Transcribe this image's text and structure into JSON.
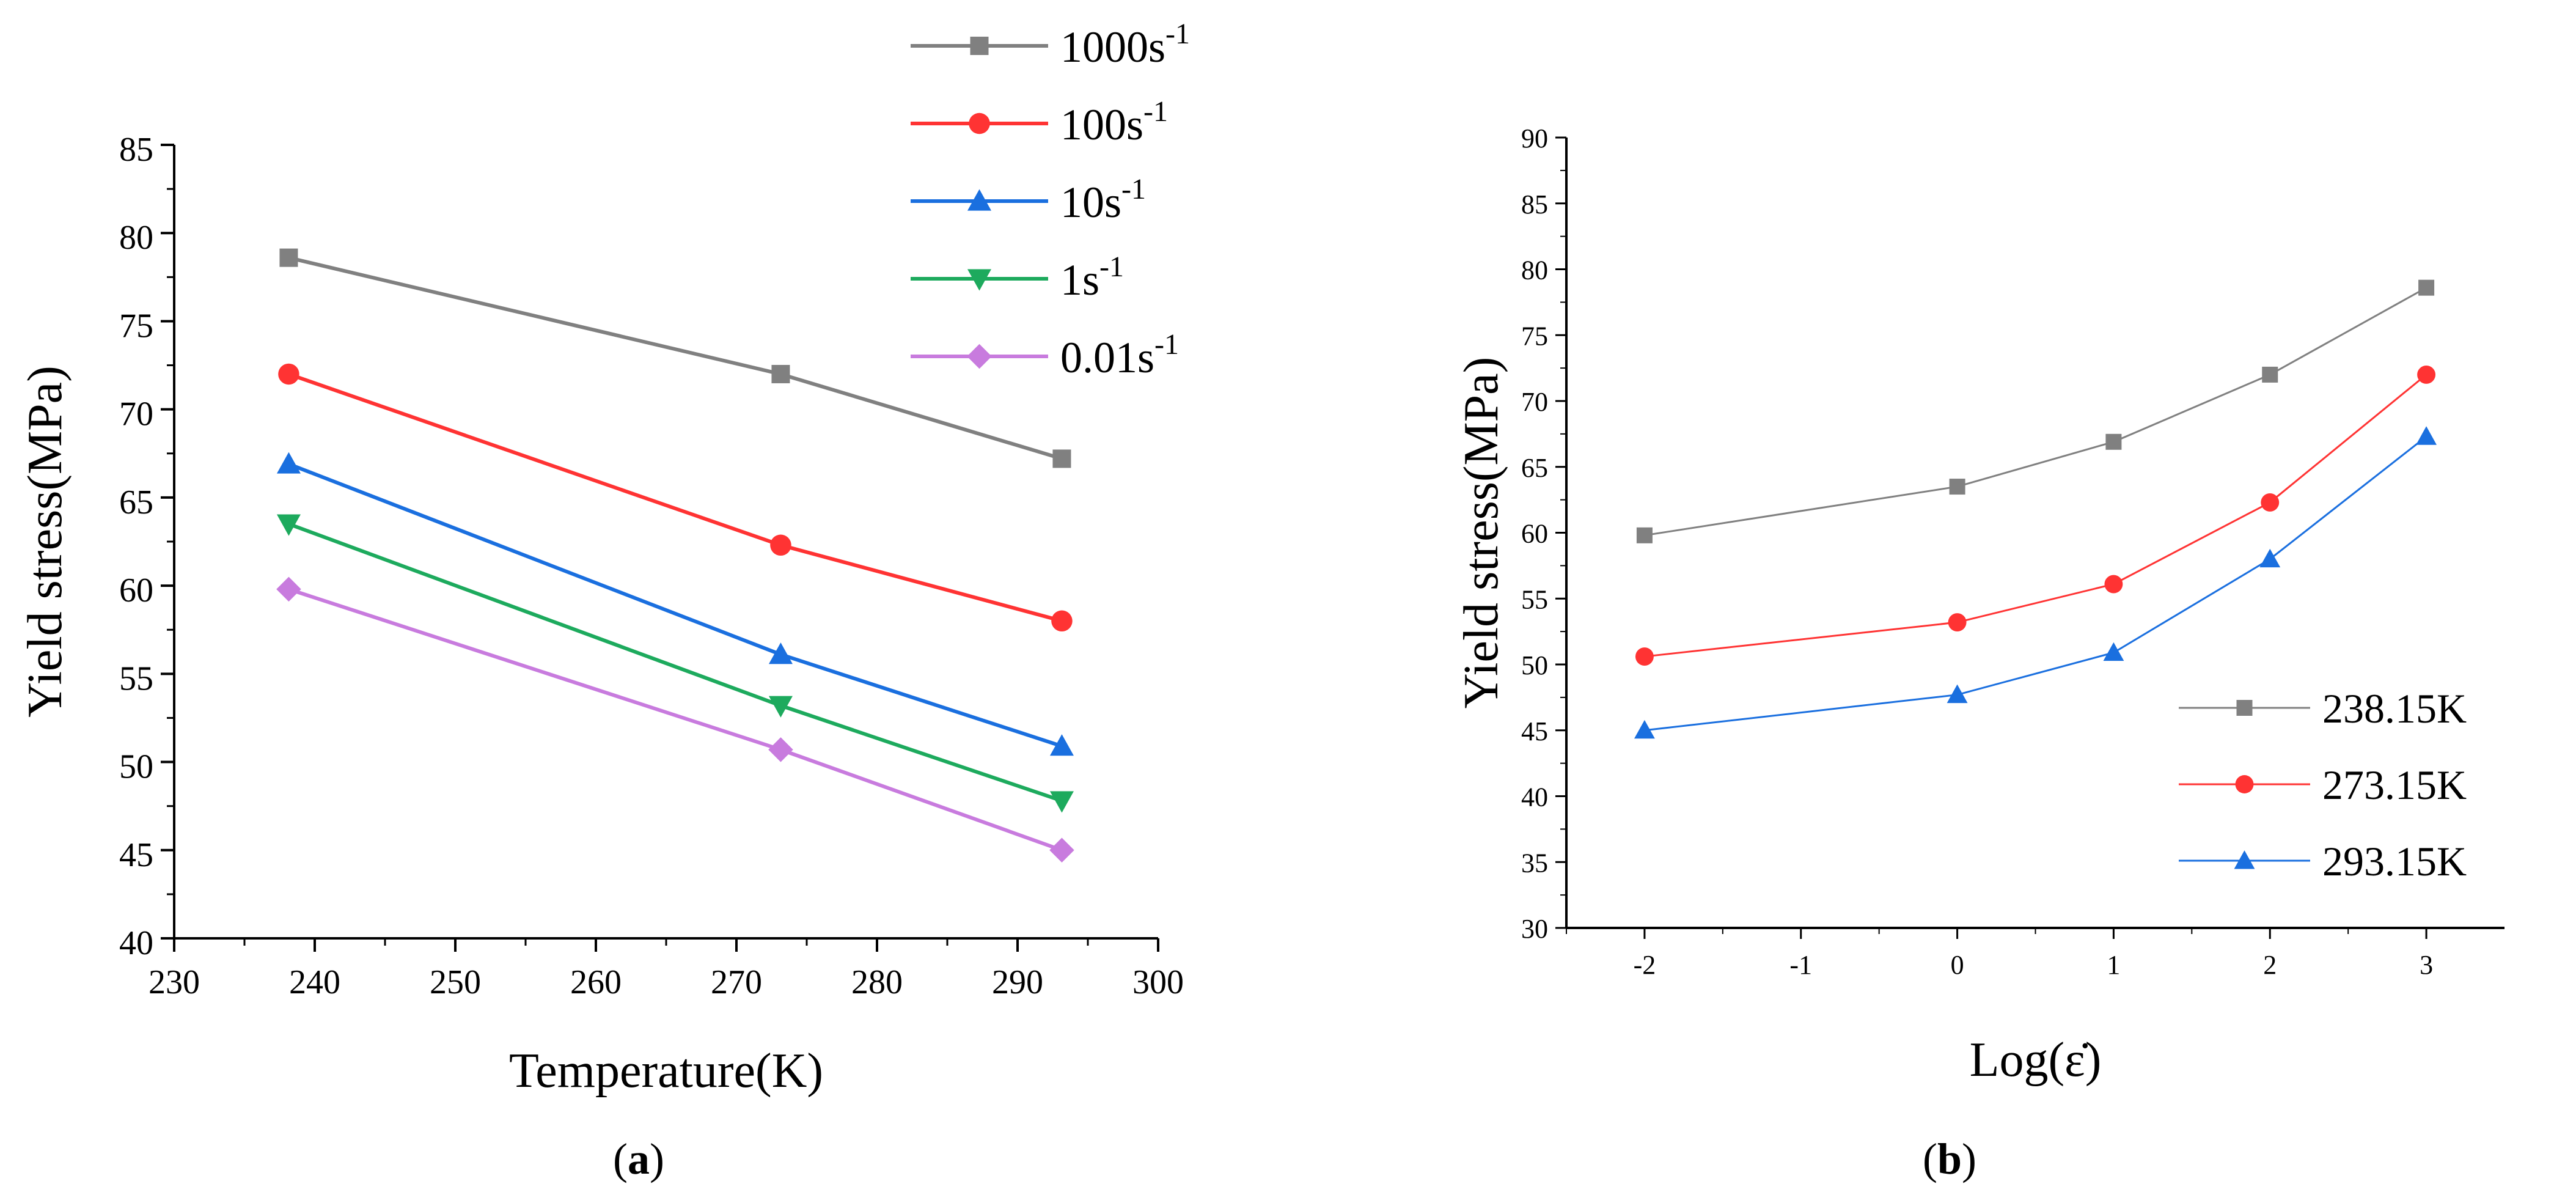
{
  "chart_data": [
    {
      "id": "a",
      "type": "line",
      "caption": "a",
      "xlabel": "Temperature(K)",
      "ylabel": "Yield stress(MPa)",
      "xlim": [
        230,
        300
      ],
      "ylim": [
        40,
        85
      ],
      "xticks": [
        230,
        240,
        250,
        260,
        270,
        280,
        290,
        300
      ],
      "yticks": [
        40,
        45,
        50,
        55,
        60,
        65,
        70,
        75,
        80,
        85
      ],
      "x": [
        238.15,
        273.15,
        293.15
      ],
      "series": [
        {
          "name": "1000s",
          "sup": "-1",
          "color": "#808080",
          "marker": "square",
          "values": [
            78.6,
            72.0,
            67.2
          ]
        },
        {
          "name": "100s",
          "sup": "-1",
          "color": "#ff3333",
          "marker": "circle",
          "values": [
            72.0,
            62.3,
            58.0
          ]
        },
        {
          "name": "10s",
          "sup": "-1",
          "color": "#1a6fdf",
          "marker": "triangle-up",
          "values": [
            66.9,
            56.1,
            50.9
          ]
        },
        {
          "name": "1s",
          "sup": "-1",
          "color": "#1daa5d",
          "marker": "triangle-down",
          "values": [
            63.5,
            53.2,
            47.8
          ]
        },
        {
          "name": "0.01s",
          "sup": "-1",
          "color": "#c87bde",
          "marker": "diamond",
          "values": [
            59.8,
            50.7,
            45.0
          ]
        }
      ]
    },
    {
      "id": "b",
      "type": "line",
      "caption": "b",
      "xlabel": "Log(ε̇)",
      "ylabel": "Yield stress(MPa)",
      "xlim": [
        -2.5,
        3.5
      ],
      "ylim": [
        30,
        90
      ],
      "xticks": [
        -2,
        -1,
        0,
        1,
        2,
        3
      ],
      "yticks": [
        30,
        35,
        40,
        45,
        50,
        55,
        60,
        65,
        70,
        75,
        80,
        85,
        90
      ],
      "x": [
        -2,
        0,
        1,
        2,
        3
      ],
      "series": [
        {
          "name": "238.15K",
          "color": "#808080",
          "marker": "square",
          "values": [
            59.8,
            63.5,
            66.9,
            72.0,
            78.6
          ]
        },
        {
          "name": "273.15K",
          "color": "#ff3333",
          "marker": "circle",
          "values": [
            50.6,
            53.2,
            56.1,
            62.3,
            72.0
          ]
        },
        {
          "name": "293.15K",
          "color": "#1a6fdf",
          "marker": "triangle-up",
          "values": [
            45.0,
            47.7,
            50.9,
            58.0,
            67.3
          ]
        }
      ]
    }
  ]
}
